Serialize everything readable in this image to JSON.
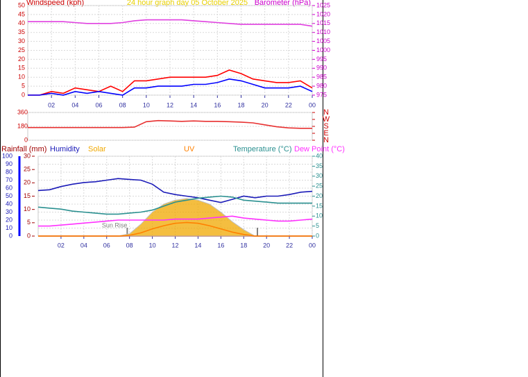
{
  "chart_data": [
    {
      "type": "line",
      "title": "24 hour graph day  05 October 2025",
      "title_color": "#e8d000",
      "ylabel": "Windspeed (kph)",
      "ylabel_color": "#cc0000",
      "y2label": "Barometer (hPa)",
      "y2label_color": "#cc00cc",
      "x": [
        0,
        1,
        2,
        3,
        4,
        5,
        6,
        7,
        8,
        9,
        10,
        11,
        12,
        13,
        14,
        15,
        16,
        17,
        18,
        19,
        20,
        21,
        22,
        23,
        24
      ],
      "xlim": [
        0,
        24
      ],
      "xticks": [
        {
          "value": 2,
          "label": "02"
        },
        {
          "value": 4,
          "label": "04"
        },
        {
          "value": 6,
          "label": "06"
        },
        {
          "value": 8,
          "label": "08"
        },
        10,
        12,
        14,
        16,
        18,
        20,
        22,
        {
          "value": 24,
          "label": "00"
        }
      ],
      "ylim": [
        0,
        50
      ],
      "yticks": [
        0,
        5,
        10,
        15,
        20,
        25,
        30,
        35,
        40,
        45,
        50
      ],
      "y2lim": [
        975,
        1025
      ],
      "y2ticks": [
        975,
        980,
        985,
        990,
        995,
        1000,
        1005,
        1010,
        1015,
        1020,
        1025
      ],
      "grid": true,
      "series": [
        {
          "color": "#ff0000",
          "values": [
            0,
            0,
            2,
            1,
            4,
            3,
            2,
            5,
            2,
            8,
            8,
            9,
            10,
            10,
            10,
            10,
            11,
            14,
            12,
            9,
            8,
            7,
            7,
            8,
            4
          ]
        },
        {
          "color": "#0000ff",
          "values": [
            0,
            0,
            1,
            0,
            2,
            1,
            2,
            1,
            0,
            4,
            4,
            5,
            5,
            5,
            6,
            6,
            7,
            9,
            8,
            6,
            4,
            4,
            4,
            5,
            2
          ]
        },
        {
          "color": "#e040e0",
          "axis": "y2",
          "values": [
            1016,
            1016,
            1016,
            1016,
            1015.5,
            1015,
            1015,
            1015,
            1015.5,
            1016.5,
            1017,
            1017,
            1017,
            1017,
            1016.5,
            1016,
            1015.5,
            1015,
            1014.5,
            1014.5,
            1014.5,
            1014.5,
            1014.5,
            1014.5,
            1013.5
          ]
        }
      ]
    },
    {
      "type": "line",
      "x": [
        0,
        1,
        2,
        3,
        4,
        5,
        6,
        7,
        8,
        9,
        10,
        11,
        12,
        13,
        14,
        15,
        16,
        17,
        18,
        19,
        20,
        21,
        22,
        23,
        24
      ],
      "xlim": [
        0,
        24
      ],
      "ylim": [
        0,
        360
      ],
      "yticks": [
        0,
        180,
        360
      ],
      "y2lim": [
        0,
        360
      ],
      "y2ticks": [
        {
          "value": 360,
          "label": "N"
        },
        {
          "value": 270,
          "label": "W"
        },
        {
          "value": 180,
          "label": "S"
        },
        {
          "value": 90,
          "label": "E"
        },
        {
          "value": 0,
          "label": "N"
        }
      ],
      "grid": true,
      "series": [
        {
          "color": "#e83030",
          "values": [
            165,
            165,
            165,
            165,
            165,
            165,
            165,
            165,
            165,
            170,
            240,
            255,
            250,
            245,
            250,
            245,
            245,
            240,
            235,
            225,
            200,
            175,
            160,
            155,
            155
          ]
        }
      ]
    },
    {
      "type": "line",
      "x": [
        0,
        1,
        2,
        3,
        4,
        5,
        6,
        7,
        8,
        9,
        10,
        11,
        12,
        13,
        14,
        15,
        16,
        17,
        18,
        19,
        20,
        21,
        22,
        23,
        24
      ],
      "xlim": [
        0,
        24
      ],
      "xticks": [
        {
          "value": 2,
          "label": "02"
        },
        {
          "value": 4,
          "label": "04"
        },
        {
          "value": 6,
          "label": "06"
        },
        {
          "value": 8,
          "label": "08"
        },
        10,
        12,
        14,
        16,
        18,
        20,
        22,
        {
          "value": 24,
          "label": "00"
        }
      ],
      "ylim": [
        0,
        100
      ],
      "yticks": [
        0,
        10,
        20,
        30,
        40,
        50,
        60,
        70,
        80,
        90,
        100
      ],
      "y3lim": [
        0,
        30
      ],
      "y3ticks": [
        0,
        5,
        10,
        15,
        20,
        25,
        30
      ],
      "y2lim": [
        0,
        40
      ],
      "y2ticks": [
        0,
        5,
        10,
        15,
        20,
        25,
        30,
        35,
        40
      ],
      "grid": true,
      "series": [
        {
          "name": "Rainfall (mm)",
          "color": "#a00000",
          "axis": "y3",
          "values": [
            0,
            0,
            0,
            0,
            0,
            0,
            0,
            0,
            0,
            0,
            0,
            0,
            0,
            0,
            0,
            0,
            0,
            0,
            0,
            0,
            0,
            0,
            0,
            0,
            0
          ]
        },
        {
          "name": "Humidity",
          "color": "#1a1ab8",
          "values": [
            57,
            58,
            62,
            65,
            67,
            68,
            70,
            72,
            71,
            70,
            65,
            55,
            52,
            50,
            48,
            45,
            42,
            46,
            50,
            48,
            50,
            50,
            52,
            55,
            56
          ]
        },
        {
          "name": "Solar",
          "color": "#f0a800",
          "fill": true,
          "values": [
            0,
            0,
            0,
            0,
            0,
            0,
            0,
            0,
            3,
            15,
            30,
            40,
            45,
            47,
            45,
            40,
            30,
            18,
            8,
            0,
            0,
            0,
            0,
            0,
            0
          ]
        },
        {
          "name": "UV",
          "color": "#ff8000",
          "values": [
            0,
            0,
            0,
            0,
            0,
            0,
            0,
            0,
            1,
            4,
            9,
            13,
            16,
            17,
            16,
            13,
            9,
            5,
            2,
            0,
            0,
            0,
            0,
            0,
            0
          ]
        },
        {
          "name": "Temperature (°C)",
          "color": "#2a9090",
          "axis": "y2",
          "values": [
            14.5,
            14,
            13.5,
            12.5,
            12,
            11.5,
            11,
            11,
            11.5,
            12,
            13,
            15,
            17,
            18,
            19,
            19.5,
            20,
            19.5,
            18,
            17.5,
            17,
            16.5,
            16.5,
            16.5,
            16.5
          ]
        },
        {
          "name": "Dew Point (°C)",
          "color": "#ff30ff",
          "axis": "y2",
          "values": [
            5,
            5,
            5.5,
            6,
            6.5,
            7,
            7.5,
            8,
            8,
            8,
            8,
            8,
            8.5,
            8.5,
            8.5,
            9,
            9.5,
            10,
            9,
            8.5,
            8,
            7.5,
            7.5,
            8,
            8.5
          ]
        }
      ],
      "annotations": [
        {
          "text": "Sun Rise",
          "x": 7.8
        }
      ],
      "sun_markers": [
        7.8,
        19.2
      ]
    }
  ]
}
